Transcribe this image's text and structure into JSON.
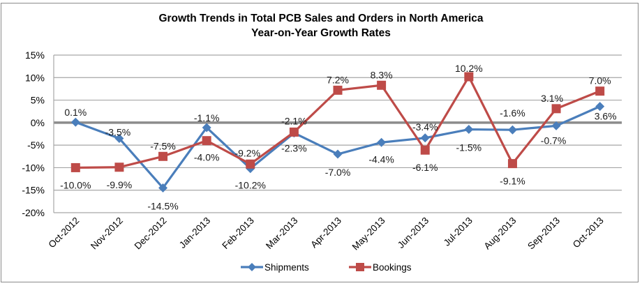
{
  "chart_data": {
    "type": "line",
    "title": "Growth Trends in Total PCB Sales and Orders in North America",
    "subtitle": "Year-on-Year Growth Rates",
    "xlabel": "",
    "ylabel": "",
    "categories": [
      "Oct-2012",
      "Nov-2012",
      "Dec-2012",
      "Jan-2013",
      "Feb-2013",
      "Mar-2013",
      "Apr-2013",
      "May-2013",
      "Jun-2013",
      "Jul-2013",
      "Aug-2013",
      "Sep-2013",
      "Oct-2013"
    ],
    "ylim": [
      -20,
      15
    ],
    "yticks": [
      15,
      10,
      5,
      0,
      -5,
      -10,
      -15,
      -20
    ],
    "ytick_labels": [
      "15%",
      "10%",
      "5%",
      "0%",
      "-5%",
      "-10%",
      "-15%",
      "-20%"
    ],
    "grid": true,
    "legend_position": "bottom",
    "series": [
      {
        "name": "Shipments",
        "color": "#4a7ebb",
        "marker": "diamond",
        "values": [
          0.1,
          -3.5,
          -14.5,
          -1.1,
          -10.2,
          -2.3,
          -7.0,
          -4.4,
          -3.4,
          -1.5,
          -1.6,
          -0.7,
          3.6
        ],
        "labels": [
          "0.1%",
          "-3.5%",
          "-14.5%",
          "-1.1%",
          "-10.2%",
          "-2.3%",
          "-7.0%",
          "-4.4%",
          "-3.4%",
          "-1.5%",
          "-1.6%",
          "-0.7%",
          "3.6%"
        ]
      },
      {
        "name": "Bookings",
        "color": "#be4b48",
        "marker": "square",
        "values": [
          -10.0,
          -9.9,
          -7.5,
          -4.0,
          -9.2,
          -2.1,
          7.2,
          8.3,
          -6.1,
          10.2,
          -9.1,
          3.1,
          7.0
        ],
        "labels": [
          "-10.0%",
          "-9.9%",
          "-7.5%",
          "-4.0%",
          "-9.2%",
          "-2.1%",
          "7.2%",
          "8.3%",
          "-6.1%",
          "10.2%",
          "-9.1%",
          "3.1%",
          "7.0%"
        ]
      }
    ]
  }
}
